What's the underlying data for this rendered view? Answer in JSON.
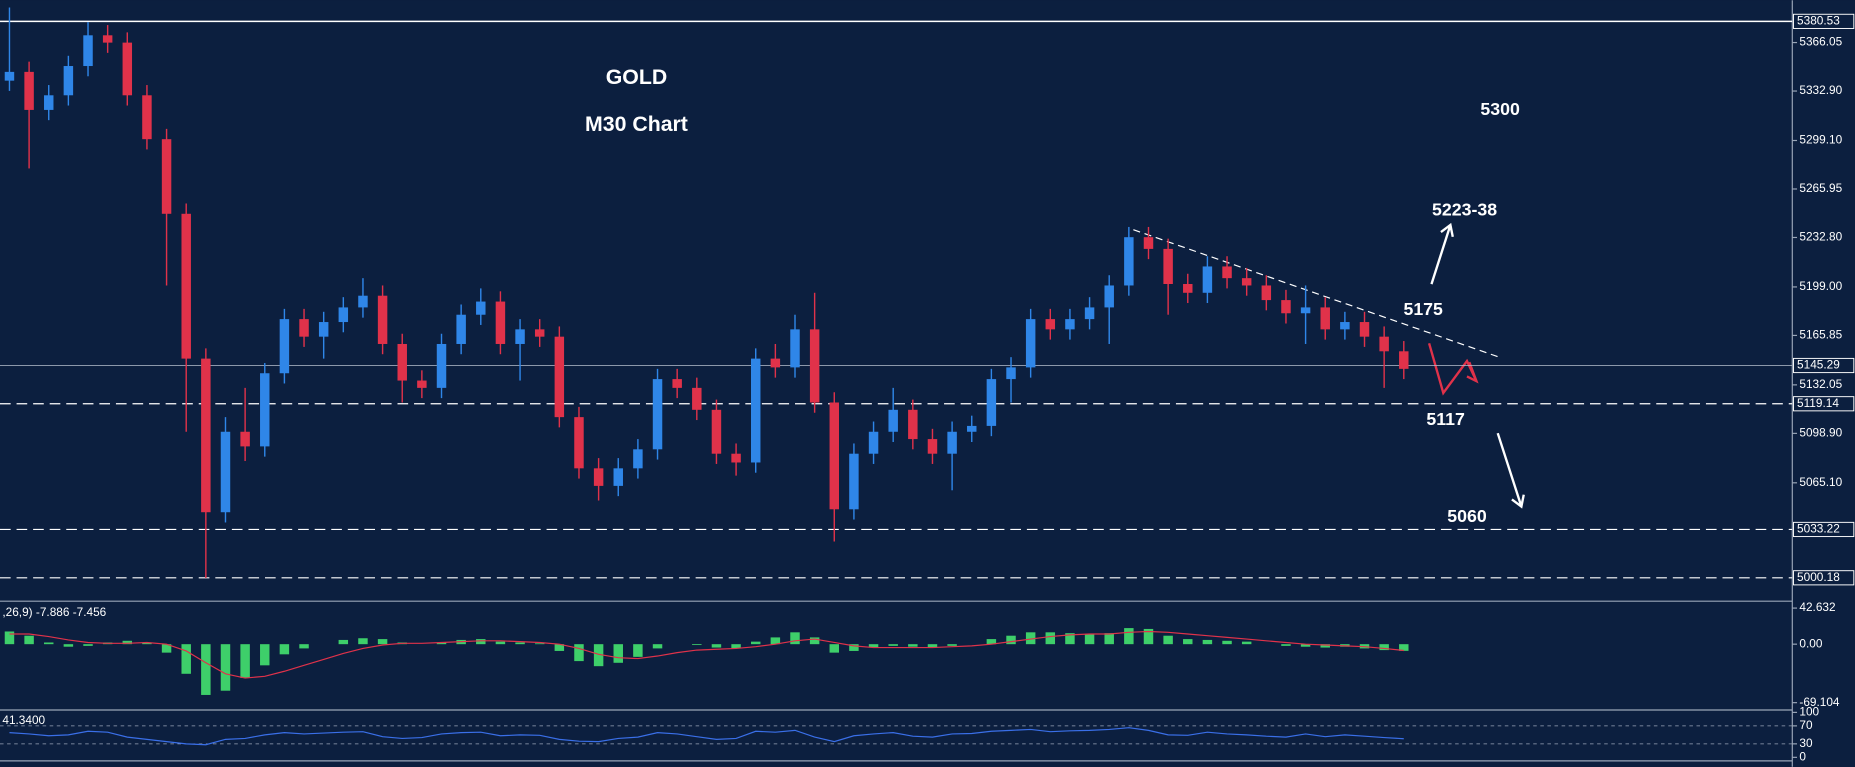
{
  "chart_data": [
    {
      "type": "candlestick",
      "title": "GOLD",
      "subtitle": "M30 Chart",
      "open": [
        5340,
        5346,
        5320,
        5330,
        5350,
        5371,
        5366,
        5330,
        5300,
        5249,
        5150,
        5045,
        5100,
        5090,
        5140,
        5177,
        5165,
        5175,
        5185,
        5193,
        5160,
        5135,
        5130,
        5160,
        5180,
        5189,
        5160,
        5170,
        5165,
        5110,
        5075,
        5063,
        5075,
        5088,
        5136,
        5130,
        5115,
        5085,
        5079,
        5150,
        5144,
        5170,
        5120,
        5047,
        5085,
        5100,
        5115,
        5095,
        5085,
        5100,
        5104,
        5136,
        5144,
        5177,
        5170,
        5177,
        5185,
        5200,
        5233,
        5225,
        5201,
        5195,
        5213,
        5205,
        5200,
        5190,
        5181,
        5185,
        5170,
        5175,
        5165,
        5155
      ],
      "high": [
        5390,
        5353,
        5337,
        5357,
        5380,
        5378,
        5373,
        5337,
        5307,
        5256,
        5157,
        5110,
        5130,
        5147,
        5184,
        5184,
        5182,
        5192,
        5205,
        5200,
        5167,
        5142,
        5167,
        5187,
        5198,
        5196,
        5177,
        5177,
        5172,
        5117,
        5082,
        5082,
        5095,
        5143,
        5143,
        5137,
        5122,
        5092,
        5157,
        5160,
        5180,
        5195,
        5127,
        5092,
        5107,
        5130,
        5122,
        5102,
        5107,
        5111,
        5143,
        5151,
        5184,
        5184,
        5184,
        5192,
        5207,
        5240,
        5240,
        5232,
        5208,
        5220,
        5220,
        5212,
        5207,
        5197,
        5200,
        5192,
        5182,
        5182,
        5172,
        5162
      ],
      "low": [
        5333,
        5280,
        5313,
        5323,
        5343,
        5359,
        5323,
        5293,
        5200,
        5100,
        5000,
        5038,
        5080,
        5083,
        5133,
        5158,
        5150,
        5168,
        5178,
        5153,
        5120,
        5123,
        5123,
        5153,
        5173,
        5153,
        5135,
        5158,
        5103,
        5068,
        5053,
        5056,
        5068,
        5081,
        5123,
        5108,
        5078,
        5070,
        5072,
        5137,
        5137,
        5113,
        5025,
        5040,
        5078,
        5093,
        5088,
        5078,
        5060,
        5093,
        5097,
        5120,
        5137,
        5163,
        5163,
        5170,
        5160,
        5193,
        5218,
        5180,
        5188,
        5188,
        5198,
        5193,
        5183,
        5174,
        5160,
        5163,
        5163,
        5158,
        5130,
        5136
      ],
      "close": [
        5346,
        5320,
        5330,
        5350,
        5371,
        5366,
        5330,
        5300,
        5249,
        5150,
        5045,
        5100,
        5090,
        5140,
        5177,
        5165,
        5175,
        5185,
        5193,
        5160,
        5135,
        5130,
        5160,
        5180,
        5189,
        5160,
        5170,
        5165,
        5110,
        5075,
        5063,
        5075,
        5088,
        5136,
        5130,
        5115,
        5085,
        5079,
        5150,
        5144,
        5170,
        5120,
        5047,
        5085,
        5100,
        5115,
        5095,
        5085,
        5100,
        5104,
        5136,
        5144,
        5177,
        5170,
        5177,
        5185,
        5200,
        5233,
        5225,
        5201,
        5195,
        5213,
        5205,
        5200,
        5190,
        5181,
        5185,
        5170,
        5175,
        5165,
        5155,
        5143
      ],
      "up_color": "#2f86e8",
      "down_color": "#e0324a",
      "ylim": [
        4985,
        5395
      ],
      "yticks": [
        5366.05,
        {
          "value": 5332.9,
          "label": "5332.90"
        },
        {
          "value": 5299.1,
          "label": "5299.10"
        },
        5265.95,
        {
          "value": 5232.8,
          "label": "5232.80"
        },
        {
          "value": 5199,
          "label": "5199.00"
        },
        5165.85,
        5132.05,
        {
          "value": 5098.9,
          "label": "5098.90"
        },
        {
          "value": 5065.1,
          "label": "5065.10"
        }
      ],
      "levels": [
        {
          "value": 5380.53,
          "style": "solid"
        },
        {
          "value": 5145.29,
          "style": "thin"
        },
        {
          "value": 5119.14,
          "style": "dashed"
        },
        {
          "value": 5033.22,
          "style": "dashed"
        },
        {
          "value": 5000.18,
          "style": "dashed"
        }
      ],
      "annotations": [
        "5300",
        "5223-38",
        "5175",
        "5117",
        "5060"
      ]
    },
    {
      "type": "macd",
      "label": ",26,9) -7.886 -7.456",
      "values": [
        15,
        10,
        2,
        -3,
        -2,
        2,
        4,
        2,
        -10,
        -35,
        -60,
        -55,
        -40,
        -25,
        -12,
        -5,
        0,
        5,
        7,
        6,
        2,
        0,
        2,
        5,
        6,
        3,
        2,
        1,
        -8,
        -20,
        -26,
        -22,
        -15,
        -5,
        0,
        -1,
        -4,
        -5,
        3,
        8,
        14,
        8,
        -10,
        -8,
        -4,
        -2,
        -3,
        -4,
        -2,
        0,
        6,
        10,
        14,
        14,
        13,
        12,
        13,
        19,
        18,
        10,
        6,
        5,
        4,
        3,
        0,
        -2,
        -3,
        -4,
        -3,
        -5,
        -7,
        -7.886
      ],
      "signal": [
        12,
        12,
        9,
        5,
        2,
        1,
        1,
        2,
        0,
        -8,
        -22,
        -35,
        -40,
        -38,
        -32,
        -25,
        -18,
        -11,
        -5,
        -1,
        1,
        1,
        2,
        3,
        4,
        4,
        3,
        2,
        0,
        -5,
        -12,
        -16,
        -17,
        -14,
        -10,
        -7,
        -6,
        -5,
        -3,
        0,
        4,
        6,
        2,
        -2,
        -4,
        -4,
        -4,
        -4,
        -3,
        -2,
        0,
        3,
        6,
        9,
        11,
        12,
        12,
        14,
        15,
        14,
        12,
        10,
        8,
        6,
        4,
        2,
        0,
        -1,
        -2,
        -3,
        -5,
        -7.456
      ],
      "color": "#3ecf6a",
      "signal_color": "#e0324a",
      "ylim": [
        -75,
        48
      ],
      "yticks": [
        42.632,
        {
          "value": 0,
          "label": "0.00"
        },
        -69.104
      ]
    },
    {
      "type": "rsi",
      "label": "41.3400",
      "values": [
        55,
        52,
        48,
        50,
        58,
        56,
        45,
        40,
        35,
        30,
        28,
        40,
        42,
        50,
        55,
        52,
        54,
        56,
        57,
        46,
        42,
        44,
        52,
        55,
        56,
        48,
        50,
        49,
        40,
        36,
        35,
        42,
        45,
        55,
        52,
        46,
        40,
        42,
        58,
        56,
        60,
        45,
        35,
        48,
        52,
        55,
        47,
        45,
        52,
        53,
        58,
        60,
        62,
        57,
        59,
        60,
        62,
        66,
        60,
        50,
        49,
        56,
        52,
        50,
        47,
        45,
        52,
        46,
        50,
        47,
        44,
        41.34
      ],
      "color": "#3a6fe8",
      "ylim": [
        0,
        100
      ],
      "yticks": [
        100,
        70,
        30,
        0
      ]
    }
  ]
}
